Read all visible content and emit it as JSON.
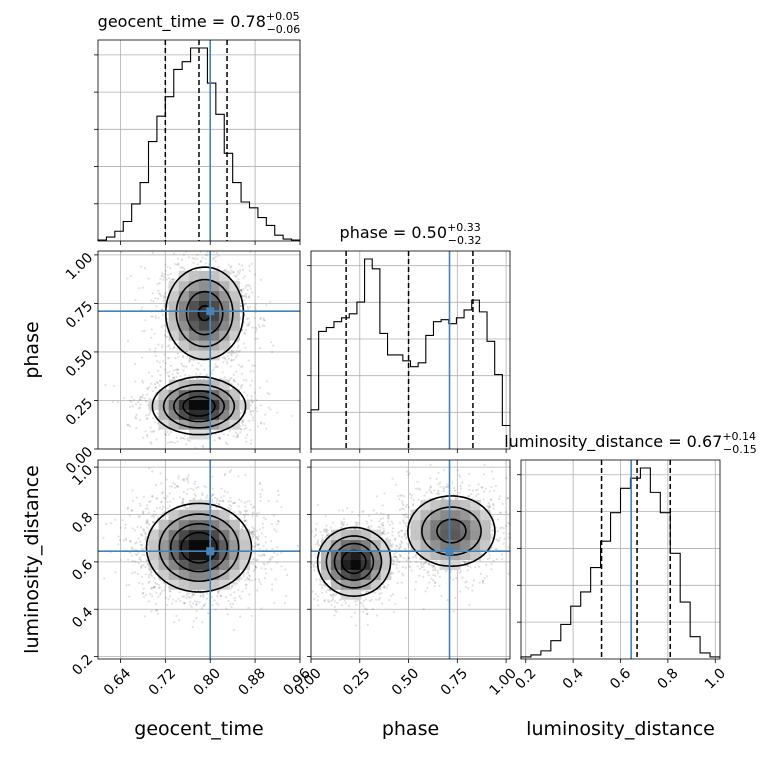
{
  "chart_data": {
    "type": "corner",
    "parameters": [
      "geocent_time",
      "phase",
      "luminosity_distance"
    ],
    "truths": {
      "geocent_time": 0.8,
      "phase": 0.71,
      "luminosity_distance": 0.645
    },
    "grid": true,
    "panels": {
      "geocent_time": {
        "title_prefix": "geocent_time = 0.78",
        "title_sup": "+0.05",
        "title_sub": "−0.06",
        "xlim": [
          0.6,
          0.96
        ],
        "xticks": [
          "0.64",
          "0.72",
          "0.80",
          "0.88",
          "0.96"
        ],
        "quantile_lines": [
          0.72,
          0.78,
          0.83
        ],
        "hist_edges": [
          0.6,
          0.96
        ],
        "hist_values": [
          0.005,
          0.02,
          0.05,
          0.1,
          0.19,
          0.3,
          0.51,
          0.64,
          0.74,
          0.88,
          0.92,
          0.99,
          0.99,
          0.81,
          0.65,
          0.45,
          0.3,
          0.2,
          0.17,
          0.12,
          0.08,
          0.03,
          0.01,
          0.005
        ]
      },
      "phase": {
        "title_prefix": "phase = 0.50",
        "title_sup": "+0.33",
        "title_sub": "−0.32",
        "xlim": [
          0.0,
          1.02
        ],
        "xticks": [
          "0.00",
          "0.25",
          "0.50",
          "0.75",
          "1.00"
        ],
        "quantile_lines": [
          0.18,
          0.5,
          0.83
        ],
        "hist_edges": [
          0.0,
          1.02
        ],
        "hist_values": [
          0.2,
          0.6,
          0.62,
          0.65,
          0.67,
          0.69,
          0.75,
          0.97,
          0.92,
          0.59,
          0.48,
          0.48,
          0.45,
          0.42,
          0.44,
          0.58,
          0.65,
          0.66,
          0.64,
          0.67,
          0.71,
          0.76,
          0.7,
          0.55,
          0.38,
          0.12
        ]
      },
      "luminosity_distance": {
        "title_prefix": "luminosity_distance = 0.67",
        "title_sup": "+0.14",
        "title_sub": "−0.15",
        "xlim": [
          0.18,
          1.02
        ],
        "xticks": [
          "0.2",
          "0.4",
          "0.6",
          "0.8",
          "1.0"
        ],
        "quantile_lines": [
          0.52,
          0.67,
          0.81
        ],
        "hist_edges": [
          0.18,
          1.02
        ],
        "hist_values": [
          0.01,
          0.02,
          0.04,
          0.09,
          0.17,
          0.26,
          0.33,
          0.45,
          0.58,
          0.72,
          0.84,
          0.89,
          0.94,
          0.82,
          0.72,
          0.52,
          0.28,
          0.11,
          0.03,
          0.01
        ]
      }
    },
    "y_ranges": {
      "phase": [
        0.0,
        1.02
      ],
      "luminosity_distance": [
        0.19,
        1.03
      ]
    },
    "y_tick_labels": {
      "phase": [
        "0.00",
        "0.25",
        "0.50",
        "0.75",
        "1.00"
      ],
      "luminosity_distance": [
        "0.2",
        "0.4",
        "0.6",
        "0.8",
        "1.0"
      ]
    },
    "joint": {
      "phase_vs_geocent_time": {
        "components": [
          {
            "cx": 0.79,
            "cy": 0.7,
            "sx": 0.035,
            "sy": 0.12,
            "w": 0.55
          },
          {
            "cx": 0.78,
            "cy": 0.22,
            "sx": 0.04,
            "sy": 0.07,
            "w": 0.45
          }
        ]
      },
      "luminosity_distance_vs_geocent_time": {
        "components": [
          {
            "cx": 0.78,
            "cy": 0.66,
            "sx": 0.045,
            "sy": 0.09,
            "w": 1.0
          }
        ]
      },
      "luminosity_distance_vs_phase": {
        "components": [
          {
            "cx": 0.22,
            "cy": 0.6,
            "sx": 0.09,
            "sy": 0.07,
            "w": 0.5
          },
          {
            "cx": 0.72,
            "cy": 0.73,
            "sx": 0.12,
            "sy": 0.08,
            "w": 0.5
          }
        ]
      }
    }
  }
}
